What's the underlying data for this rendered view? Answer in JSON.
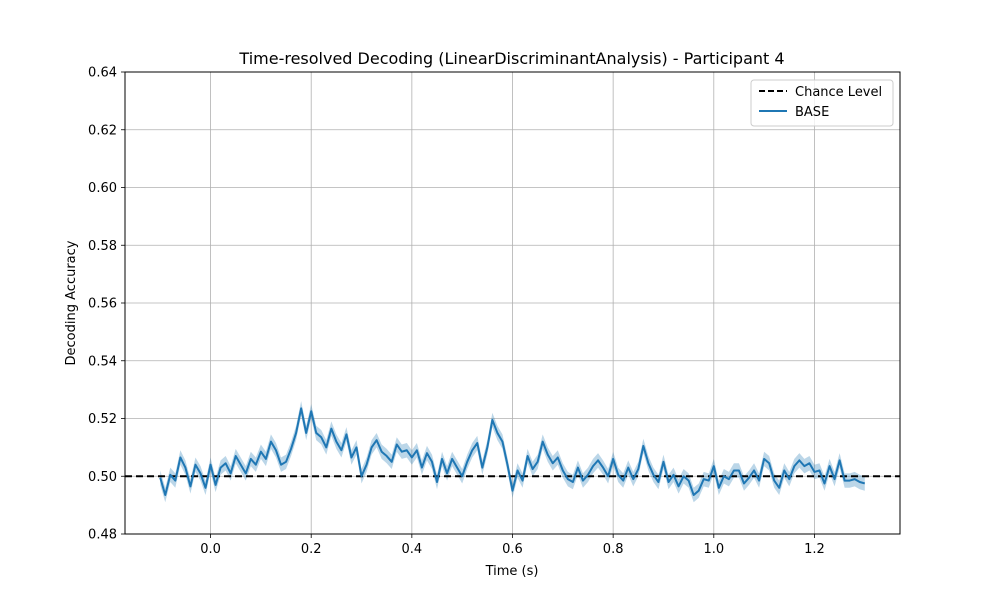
{
  "chart_data": {
    "type": "line",
    "title": "Time-resolved Decoding (LinearDiscriminantAnalysis) - Participant 4",
    "xlabel": "Time (s)",
    "ylabel": "Decoding Accuracy",
    "xlim": [
      -0.17,
      1.37
    ],
    "ylim": [
      0.48,
      0.64
    ],
    "xticks": [
      0.0,
      0.2,
      0.4,
      0.6,
      0.8,
      1.0,
      1.2
    ],
    "xtick_labels": [
      "0.0",
      "0.2",
      "0.4",
      "0.6",
      "0.8",
      "1.0",
      "1.2"
    ],
    "yticks": [
      0.48,
      0.5,
      0.52,
      0.54,
      0.56,
      0.58,
      0.6,
      0.62,
      0.64
    ],
    "ytick_labels": [
      "0.48",
      "0.50",
      "0.52",
      "0.54",
      "0.56",
      "0.58",
      "0.60",
      "0.62",
      "0.64"
    ],
    "grid": true,
    "legend_position": "top-right",
    "chance_level": {
      "name": "Chance Level",
      "value": 0.5,
      "color": "#000000",
      "style": "dashed"
    },
    "series": [
      {
        "name": "BASE",
        "color": "#1f77b4",
        "band_color": "#1f77b4",
        "band_halfwidth": 0.0025,
        "x": [
          -0.1,
          -0.09,
          -0.08,
          -0.07,
          -0.06,
          -0.05,
          -0.04,
          -0.03,
          -0.02,
          -0.01,
          0.0,
          0.01,
          0.02,
          0.03,
          0.04,
          0.05,
          0.06,
          0.07,
          0.08,
          0.09,
          0.1,
          0.11,
          0.12,
          0.13,
          0.14,
          0.15,
          0.16,
          0.17,
          0.18,
          0.19,
          0.2,
          0.21,
          0.22,
          0.23,
          0.24,
          0.25,
          0.26,
          0.27,
          0.28,
          0.29,
          0.3,
          0.31,
          0.32,
          0.33,
          0.34,
          0.35,
          0.36,
          0.37,
          0.38,
          0.39,
          0.4,
          0.41,
          0.42,
          0.43,
          0.44,
          0.45,
          0.46,
          0.47,
          0.48,
          0.49,
          0.5,
          0.51,
          0.52,
          0.53,
          0.54,
          0.55,
          0.56,
          0.57,
          0.58,
          0.59,
          0.6,
          0.61,
          0.62,
          0.63,
          0.64,
          0.65,
          0.66,
          0.67,
          0.68,
          0.69,
          0.7,
          0.71,
          0.72,
          0.73,
          0.74,
          0.75,
          0.76,
          0.77,
          0.78,
          0.79,
          0.8,
          0.81,
          0.82,
          0.83,
          0.84,
          0.85,
          0.86,
          0.87,
          0.88,
          0.89,
          0.9,
          0.91,
          0.92,
          0.93,
          0.94,
          0.95,
          0.96,
          0.97,
          0.98,
          0.99,
          1.0,
          1.01,
          1.02,
          1.03,
          1.04,
          1.05,
          1.06,
          1.07,
          1.08,
          1.09,
          1.1,
          1.11,
          1.12,
          1.13,
          1.14,
          1.15,
          1.16,
          1.17,
          1.18,
          1.19,
          1.2,
          1.21,
          1.22,
          1.23,
          1.24,
          1.25,
          1.26,
          1.27,
          1.28,
          1.29,
          1.3
        ],
        "values": [
          0.4995,
          0.4935,
          0.5005,
          0.4985,
          0.5065,
          0.503,
          0.4965,
          0.504,
          0.501,
          0.496,
          0.504,
          0.497,
          0.503,
          0.5045,
          0.501,
          0.507,
          0.504,
          0.501,
          0.506,
          0.504,
          0.5085,
          0.506,
          0.512,
          0.509,
          0.504,
          0.505,
          0.5095,
          0.515,
          0.5235,
          0.515,
          0.5225,
          0.515,
          0.5135,
          0.51,
          0.5165,
          0.512,
          0.509,
          0.5145,
          0.5065,
          0.51,
          0.5,
          0.504,
          0.51,
          0.5125,
          0.5085,
          0.507,
          0.505,
          0.511,
          0.5085,
          0.509,
          0.5065,
          0.509,
          0.503,
          0.508,
          0.505,
          0.498,
          0.506,
          0.501,
          0.506,
          0.503,
          0.5,
          0.505,
          0.509,
          0.5115,
          0.503,
          0.51,
          0.5195,
          0.515,
          0.512,
          0.504,
          0.495,
          0.502,
          0.4985,
          0.507,
          0.5025,
          0.505,
          0.512,
          0.5075,
          0.5045,
          0.5065,
          0.502,
          0.499,
          0.498,
          0.503,
          0.4985,
          0.5005,
          0.5035,
          0.5055,
          0.503,
          0.5,
          0.506,
          0.5005,
          0.4985,
          0.503,
          0.499,
          0.5025,
          0.5105,
          0.5045,
          0.5005,
          0.498,
          0.505,
          0.498,
          0.5005,
          0.4965,
          0.5,
          0.4985,
          0.4935,
          0.495,
          0.499,
          0.4985,
          0.5035,
          0.496,
          0.5,
          0.499,
          0.502,
          0.502,
          0.4975,
          0.4995,
          0.502,
          0.4985,
          0.506,
          0.5045,
          0.4985,
          0.496,
          0.502,
          0.499,
          0.5035,
          0.5055,
          0.5035,
          0.5045,
          0.5015,
          0.502,
          0.4975,
          0.5035,
          0.499,
          0.5055,
          0.4985,
          0.4985,
          0.499,
          0.498,
          0.4975
        ]
      }
    ]
  }
}
